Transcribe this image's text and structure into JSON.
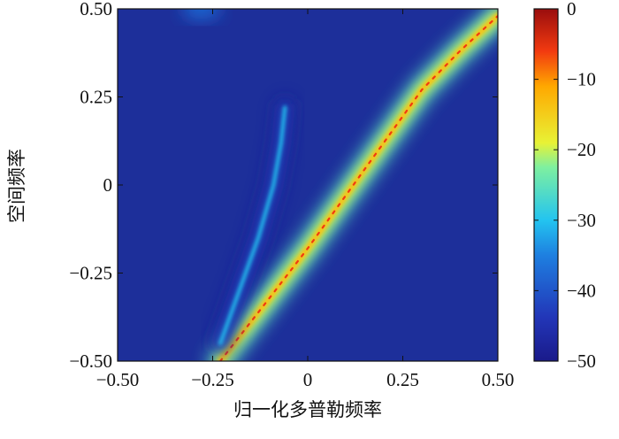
{
  "chart_data": {
    "type": "heatmap",
    "title": "",
    "xlabel": "归一化多普勒频率",
    "ylabel": "空间频率",
    "xlim": [
      -0.5,
      0.5
    ],
    "ylim": [
      -0.5,
      0.5
    ],
    "x_ticks": [
      -0.5,
      -0.25,
      0,
      0.25,
      0.5
    ],
    "x_tick_labels": [
      "−0.50",
      "−0.25",
      "0",
      "0.25",
      "0.50"
    ],
    "y_ticks": [
      -0.5,
      -0.25,
      0,
      0.25,
      0.5
    ],
    "y_tick_labels": [
      "−0.50",
      "−0.25",
      "0",
      "0.25",
      "0.50"
    ],
    "colorbar": {
      "range": [
        -50,
        0
      ],
      "ticks": [
        0,
        -10,
        -20,
        -30,
        -40,
        -50
      ],
      "tick_labels": [
        "0",
        "−10",
        "−20",
        "−30",
        "−40",
        "−50"
      ],
      "colormap": "jet"
    },
    "background_level_db": -48,
    "features": [
      {
        "name": "main clutter ridge",
        "points": [
          [
            -0.23,
            -0.5
          ],
          [
            -0.1,
            -0.32
          ],
          [
            0.0,
            -0.18
          ],
          [
            0.1,
            -0.03
          ],
          [
            0.2,
            0.12
          ],
          [
            0.3,
            0.27
          ],
          [
            0.4,
            0.38
          ],
          [
            0.5,
            0.48
          ]
        ],
        "peak_db": 0,
        "edge_db": -20
      },
      {
        "name": "secondary ridge",
        "points": [
          [
            -0.23,
            -0.45
          ],
          [
            -0.18,
            -0.3
          ],
          [
            -0.13,
            -0.15
          ],
          [
            -0.09,
            0.0
          ],
          [
            -0.07,
            0.12
          ],
          [
            -0.06,
            0.22
          ]
        ],
        "peak_db": -30,
        "edge_db": -42
      },
      {
        "name": "top sidelobe",
        "points": [
          [
            -0.28,
            0.5
          ]
        ],
        "peak_db": -38
      }
    ]
  }
}
